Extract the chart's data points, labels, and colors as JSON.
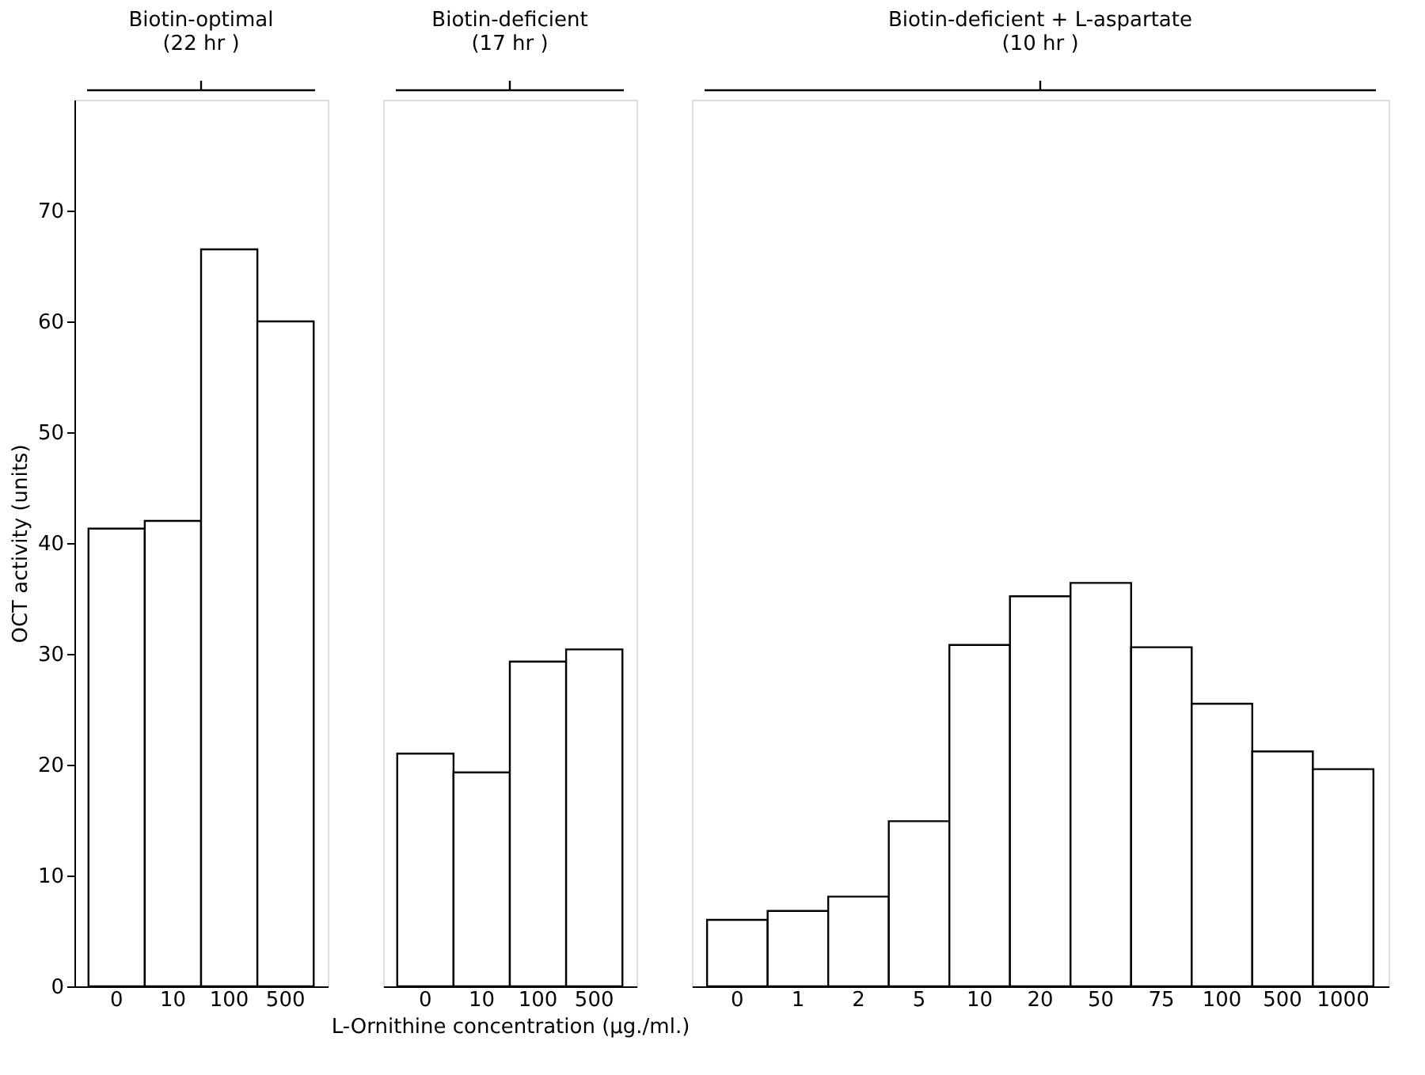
{
  "chart_data": [
    {
      "type": "bar",
      "title": [
        "Biotin-optimal",
        "(22 hr )"
      ],
      "ylabel": "OCT activity (units)",
      "categories": [
        "0",
        "10",
        "100",
        "500"
      ],
      "values": [
        41.3,
        42,
        66.5,
        60
      ],
      "color": "#ffffff",
      "ylim": [
        0,
        80
      ],
      "yticks": [
        0,
        10,
        20,
        30,
        40,
        50,
        60,
        70
      ],
      "grid": false
    },
    {
      "type": "bar",
      "title": [
        "Biotin-deficient",
        "(17 hr )"
      ],
      "xlabel": "L-Ornithine concentration (μg./ml.)",
      "categories": [
        "0",
        "10",
        "100",
        "500"
      ],
      "values": [
        21,
        19.3,
        29.3,
        30.4
      ],
      "color": "#ffffff",
      "ylim": [
        0,
        80
      ],
      "tick_labels": "x",
      "grid": false
    },
    {
      "type": "bar",
      "title": [
        "Biotin-deficient + L-aspartate",
        "(10 hr )"
      ],
      "categories": [
        "0",
        "1",
        "2",
        "5",
        "10",
        "20",
        "50",
        "75",
        "100",
        "500",
        "1000"
      ],
      "values": [
        6,
        6.8,
        8.1,
        14.9,
        30.8,
        35.2,
        36.4,
        30.6,
        25.5,
        21.2,
        19.6
      ],
      "color": "#ffffff",
      "ylim": [
        0,
        80
      ],
      "tick_labels": "x",
      "grid": false
    }
  ]
}
